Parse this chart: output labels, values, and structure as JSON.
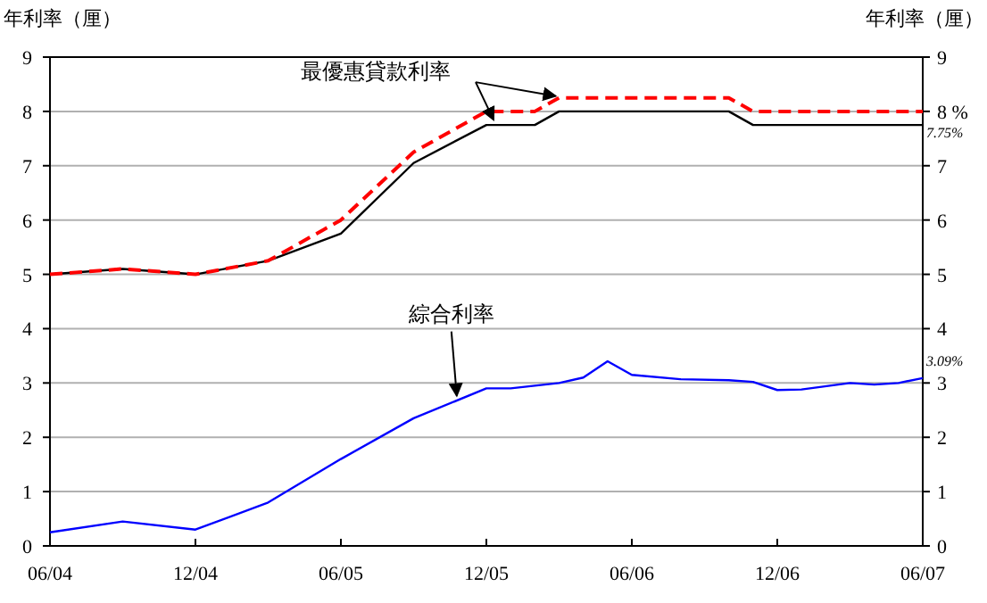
{
  "chart_data": {
    "type": "line",
    "ylabel": "年利率（厘）",
    "y2label": "年利率（厘）",
    "grid": "y",
    "xlim": [
      "2004-06",
      "2007-06"
    ],
    "xticks": [
      {
        "value": "2004-06",
        "label": "06/04"
      },
      {
        "value": "2004-12",
        "label": "12/04"
      },
      {
        "value": "2005-06",
        "label": "06/05"
      },
      {
        "value": "2005-12",
        "label": "12/05"
      },
      {
        "value": "2006-06",
        "label": "06/06"
      },
      {
        "value": "2006-12",
        "label": "12/06"
      },
      {
        "value": "2007-06",
        "label": "06/07"
      }
    ],
    "ylim": [
      0,
      9
    ],
    "yticks": [
      0,
      1,
      2,
      3,
      4,
      5,
      6,
      7,
      8,
      9
    ],
    "y2lim": [
      0,
      9
    ],
    "y2ticks": [
      0,
      1,
      2,
      3,
      4,
      5,
      6,
      7,
      {
        "value": 8,
        "label": "8 %"
      },
      9
    ],
    "series": [
      {
        "color": "#000000",
        "line_style": "solid",
        "x": [
          "2004-06",
          "2004-09",
          "2004-12",
          "2005-03",
          "2005-06",
          "2005-09",
          "2005-12",
          "2006-02",
          "2006-03",
          "2006-10",
          "2006-11",
          "2007-06"
        ],
        "values": [
          5.0,
          5.1,
          5.0,
          5.25,
          5.75,
          7.05,
          7.75,
          7.75,
          8.0,
          8.0,
          7.75,
          7.75
        ]
      },
      {
        "color": "#ff0000",
        "line_style": "dashed",
        "x": [
          "2004-06",
          "2004-09",
          "2004-12",
          "2005-03",
          "2005-06",
          "2005-09",
          "2005-12",
          "2006-02",
          "2006-03",
          "2006-10",
          "2006-11",
          "2007-06"
        ],
        "values": [
          5.0,
          5.1,
          5.0,
          5.25,
          6.0,
          7.25,
          8.0,
          8.0,
          8.25,
          8.25,
          8.0,
          8.0
        ]
      },
      {
        "color": "#0000ff",
        "line_style": "solid",
        "x": [
          "2004-06",
          "2004-09",
          "2004-12",
          "2005-03",
          "2005-06",
          "2005-09",
          "2005-12",
          "2006-01",
          "2006-03",
          "2006-04",
          "2006-05",
          "2006-06",
          "2006-08",
          "2006-10",
          "2006-11",
          "2006-12",
          "2007-01",
          "2007-03",
          "2007-04",
          "2007-05",
          "2007-06"
        ],
        "values": [
          0.25,
          0.45,
          0.3,
          0.8,
          1.6,
          2.35,
          2.9,
          2.9,
          3.0,
          3.1,
          3.4,
          3.15,
          3.07,
          3.05,
          3.02,
          2.87,
          2.88,
          3.0,
          2.97,
          3.0,
          3.09
        ]
      }
    ],
    "annotations": [
      {
        "text": "最優惠貸款利率",
        "x": "2005-12",
        "y": 7.75
      },
      {
        "text": "綜合利率",
        "x": "2005-11",
        "y": 2.7
      },
      {
        "text": "7.75%",
        "x": "2007-06",
        "y": 7.75
      },
      {
        "text": "3.09%",
        "x": "2007-06",
        "y": 3.09
      }
    ]
  }
}
